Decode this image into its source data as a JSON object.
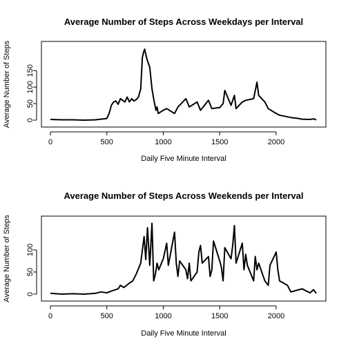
{
  "chart_data": [
    {
      "type": "line",
      "title": "Average Number of Steps Across Weekdays per Interval",
      "xlabel": "Daily Five Minute Interval",
      "ylabel": "Average Number of Steps",
      "xlim": [
        0,
        2355
      ],
      "ylim": [
        0,
        230
      ],
      "xticks": [
        0,
        500,
        1000,
        1500,
        2000
      ],
      "yticks": [
        0,
        50,
        100,
        150
      ],
      "line_color": "#000000",
      "grid": false,
      "series": [
        {
          "x": [
            0,
            100,
            200,
            300,
            400,
            500,
            520,
            540,
            560,
            580,
            600,
            620,
            640,
            660,
            680,
            700,
            720,
            740,
            760,
            780,
            800,
            815,
            825,
            835,
            845,
            855,
            865,
            880,
            900,
            920,
            935,
            945,
            955,
            1000,
            1030,
            1100,
            1130,
            1200,
            1230,
            1300,
            1330,
            1400,
            1430,
            1500,
            1530,
            1545,
            1600,
            1630,
            1645,
            1700,
            1730,
            1800,
            1830,
            1845,
            1900,
            1930,
            2000,
            2030,
            2100,
            2130,
            2200,
            2230,
            2300,
            2330,
            2355
          ],
          "y": [
            2,
            1,
            1,
            0,
            1,
            5,
            20,
            45,
            55,
            58,
            48,
            65,
            60,
            55,
            70,
            55,
            65,
            58,
            62,
            70,
            95,
            190,
            205,
            215,
            200,
            185,
            175,
            160,
            95,
            55,
            30,
            40,
            20,
            30,
            35,
            20,
            40,
            65,
            40,
            55,
            30,
            60,
            35,
            38,
            50,
            90,
            45,
            75,
            35,
            55,
            60,
            65,
            115,
            75,
            55,
            35,
            20,
            15,
            10,
            8,
            5,
            3,
            2,
            4,
            1
          ]
        }
      ]
    },
    {
      "type": "line",
      "title": "Average Number of Steps Across Weekends per Interval",
      "xlabel": "Daily Five Minute Interval",
      "ylabel": "Average Number of Steps",
      "xlim": [
        0,
        2355
      ],
      "ylim": [
        0,
        170
      ],
      "xticks": [
        0,
        500,
        1000,
        1500,
        2000
      ],
      "yticks": [
        0,
        50,
        100
      ],
      "line_color": "#000000",
      "grid": false,
      "series": [
        {
          "x": [
            0,
            100,
            200,
            300,
            400,
            450,
            500,
            550,
            600,
            620,
            650,
            700,
            730,
            760,
            800,
            830,
            845,
            860,
            880,
            900,
            915,
            930,
            945,
            960,
            1000,
            1030,
            1045,
            1100,
            1115,
            1130,
            1145,
            1200,
            1215,
            1230,
            1245,
            1300,
            1315,
            1330,
            1345,
            1400,
            1415,
            1430,
            1445,
            1500,
            1515,
            1530,
            1545,
            1600,
            1615,
            1630,
            1645,
            1700,
            1715,
            1730,
            1745,
            1800,
            1815,
            1830,
            1845,
            1900,
            1930,
            1945,
            2000,
            2015,
            2030,
            2100,
            2130,
            2200,
            2230,
            2300,
            2330,
            2355
          ],
          "y": [
            2,
            0,
            1,
            0,
            2,
            5,
            3,
            8,
            12,
            20,
            15,
            25,
            30,
            45,
            70,
            130,
            78,
            150,
            65,
            160,
            30,
            45,
            70,
            55,
            80,
            115,
            65,
            140,
            70,
            40,
            75,
            55,
            35,
            70,
            30,
            50,
            95,
            110,
            70,
            85,
            40,
            55,
            120,
            75,
            60,
            30,
            105,
            80,
            110,
            155,
            70,
            115,
            55,
            90,
            65,
            30,
            85,
            55,
            70,
            30,
            20,
            65,
            95,
            55,
            30,
            20,
            5,
            10,
            12,
            3,
            10,
            2
          ]
        }
      ]
    }
  ]
}
